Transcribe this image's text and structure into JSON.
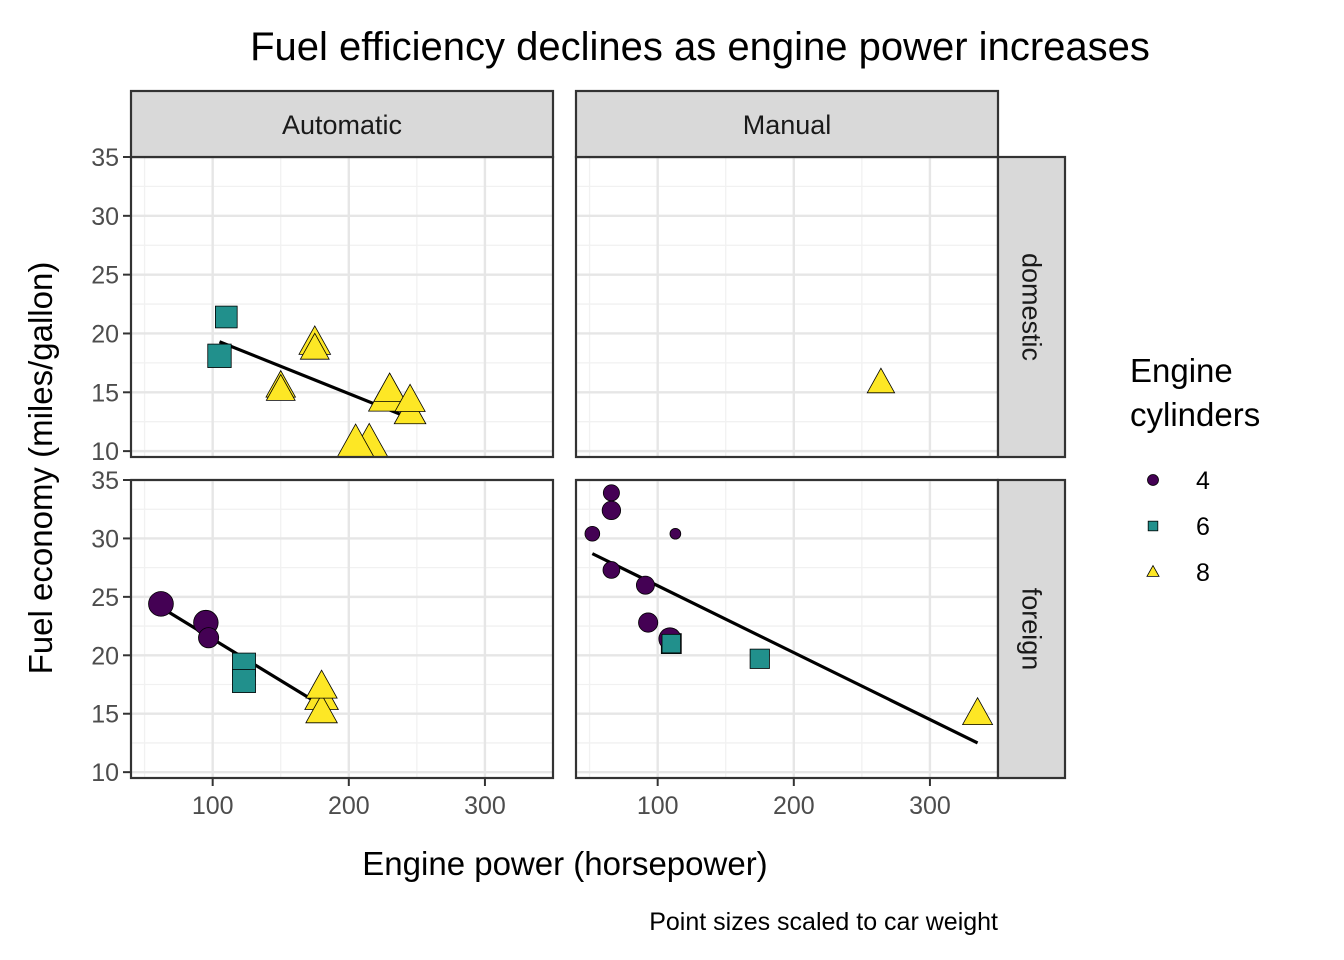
{
  "chart_data": {
    "type": "scatter",
    "title": "Fuel efficiency declines as engine power increases",
    "xlabel": "Engine power (horsepower)",
    "ylabel": "Fuel economy (miles/gallon)",
    "caption": "Point sizes scaled to car weight",
    "xlim": [
      40,
      350
    ],
    "ylim": [
      9.5,
      35
    ],
    "x_ticks": [
      100,
      200,
      300
    ],
    "y_ticks": [
      10,
      15,
      20,
      25,
      30,
      35
    ],
    "grid": true,
    "legend_position": "right",
    "facet_cols": [
      "Automatic",
      "Manual"
    ],
    "facet_rows": [
      "domestic",
      "foreign"
    ],
    "legend": {
      "title": [
        "Engine",
        "cylinders"
      ],
      "entries": [
        {
          "label": "4",
          "shape": "circle",
          "color": "#440154"
        },
        {
          "label": "6",
          "shape": "square",
          "color": "#21908C"
        },
        {
          "label": "8",
          "shape": "triangle",
          "color": "#FDE725"
        }
      ]
    },
    "panels": [
      {
        "col": "Automatic",
        "row": "domestic",
        "points": [
          {
            "x": 110,
            "y": 21.4,
            "cyl": 6,
            "wt": 3.2
          },
          {
            "x": 105,
            "y": 18.1,
            "cyl": 6,
            "wt": 3.5
          },
          {
            "x": 175,
            "y": 19.2,
            "cyl": 8,
            "wt": 3.8
          },
          {
            "x": 175,
            "y": 18.7,
            "cyl": 8,
            "wt": 3.4
          },
          {
            "x": 150,
            "y": 15.5,
            "cyl": 8,
            "wt": 3.5
          },
          {
            "x": 150,
            "y": 15.2,
            "cyl": 8,
            "wt": 3.4
          },
          {
            "x": 230,
            "y": 14.7,
            "cyl": 8,
            "wt": 5.3
          },
          {
            "x": 230,
            "y": 15.2,
            "cyl": 8,
            "wt": 3.8
          },
          {
            "x": 245,
            "y": 14.3,
            "cyl": 8,
            "wt": 3.6
          },
          {
            "x": 245,
            "y": 13.3,
            "cyl": 8,
            "wt": 3.8
          },
          {
            "x": 205,
            "y": 10.4,
            "cyl": 8,
            "wt": 5.25
          },
          {
            "x": 215,
            "y": 10.4,
            "cyl": 8,
            "wt": 5.4
          }
        ],
        "fit": {
          "x": [
            105,
            245
          ],
          "y": [
            19.3,
            12.8
          ]
        }
      },
      {
        "col": "Manual",
        "row": "domestic",
        "points": [
          {
            "x": 264,
            "y": 15.8,
            "cyl": 8,
            "wt": 3.2
          }
        ],
        "fit": null
      },
      {
        "col": "Automatic",
        "row": "foreign",
        "points": [
          {
            "x": 62,
            "y": 24.4,
            "cyl": 4,
            "wt": 3.19
          },
          {
            "x": 95,
            "y": 22.8,
            "cyl": 4,
            "wt": 3.15
          },
          {
            "x": 97,
            "y": 21.5,
            "cyl": 4,
            "wt": 2.47
          },
          {
            "x": 123,
            "y": 19.2,
            "cyl": 6,
            "wt": 3.44
          },
          {
            "x": 123,
            "y": 17.8,
            "cyl": 6,
            "wt": 3.44
          },
          {
            "x": 180,
            "y": 17.3,
            "cyl": 8,
            "wt": 3.73
          },
          {
            "x": 180,
            "y": 16.4,
            "cyl": 8,
            "wt": 4.07
          },
          {
            "x": 180,
            "y": 15.2,
            "cyl": 8,
            "wt": 3.78
          }
        ],
        "fit": {
          "x": [
            62,
            180
          ],
          "y": [
            24.1,
            15.7
          ]
        }
      },
      {
        "col": "Manual",
        "row": "foreign",
        "points": [
          {
            "x": 66,
            "y": 33.9,
            "cyl": 4,
            "wt": 1.84
          },
          {
            "x": 66,
            "y": 32.4,
            "cyl": 4,
            "wt": 2.2
          },
          {
            "x": 52,
            "y": 30.4,
            "cyl": 4,
            "wt": 1.62
          },
          {
            "x": 113,
            "y": 30.4,
            "cyl": 4,
            "wt": 1.0
          },
          {
            "x": 66,
            "y": 27.3,
            "cyl": 4,
            "wt": 1.94
          },
          {
            "x": 91,
            "y": 26.0,
            "cyl": 4,
            "wt": 2.14
          },
          {
            "x": 93,
            "y": 22.8,
            "cyl": 4,
            "wt": 2.32
          },
          {
            "x": 109,
            "y": 21.4,
            "cyl": 4,
            "wt": 2.78
          },
          {
            "x": 110,
            "y": 21.0,
            "cyl": 6,
            "wt": 2.62
          },
          {
            "x": 110,
            "y": 21.0,
            "cyl": 6,
            "wt": 2.88
          },
          {
            "x": 175,
            "y": 19.7,
            "cyl": 6,
            "wt": 2.77
          },
          {
            "x": 335,
            "y": 15.0,
            "cyl": 8,
            "wt": 3.57
          }
        ],
        "fit": {
          "x": [
            52,
            335
          ],
          "y": [
            28.7,
            12.5
          ]
        }
      }
    ]
  }
}
